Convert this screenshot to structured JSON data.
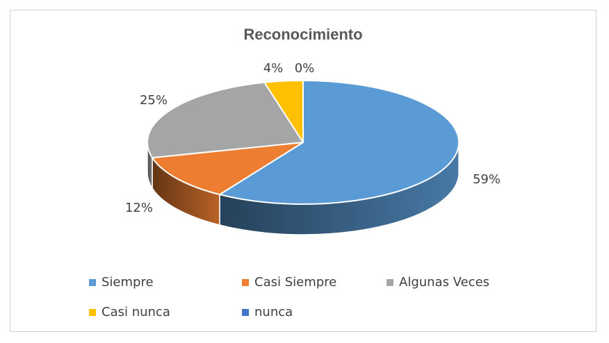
{
  "chart_data": {
    "type": "pie",
    "title": "Reconocimiento",
    "categories": [
      "Siempre",
      "Casi Siempre",
      "Algunas Veces",
      "Casi nunca",
      "nunca"
    ],
    "values": [
      59,
      12,
      25,
      4,
      0
    ],
    "labels": [
      "59%",
      "12%",
      "25%",
      "4%",
      "0%"
    ],
    "colors": [
      "#5B9BD5",
      "#ED7D31",
      "#A5A5A5",
      "#FFC000",
      "#4472C4"
    ],
    "legend_position": "bottom",
    "style": "3d"
  }
}
